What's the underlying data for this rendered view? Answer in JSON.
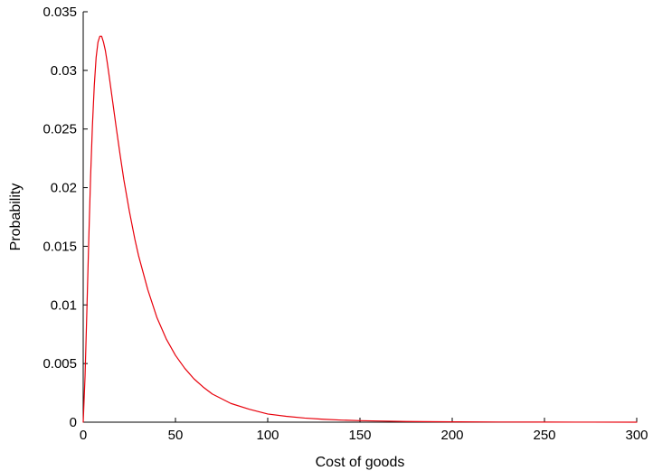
{
  "chart_data": {
    "type": "line",
    "title": "",
    "xlabel": "Cost of goods",
    "ylabel": "Probability",
    "xlim": [
      0,
      300
    ],
    "ylim": [
      0,
      0.035
    ],
    "x_ticks": [
      "0",
      "50",
      "100",
      "150",
      "200",
      "250",
      "300"
    ],
    "y_ticks": [
      "0",
      "0.005",
      "0.01",
      "0.015",
      "0.02",
      "0.025",
      "0.03",
      "0.035"
    ],
    "grid": false,
    "legend": "none",
    "series": [
      {
        "color": "#e8000b",
        "x": [
          0,
          1,
          2,
          3,
          4,
          5,
          6,
          7,
          8,
          9,
          10,
          11,
          12,
          13,
          14,
          16,
          18,
          20,
          22,
          25,
          28,
          30,
          35,
          40,
          45,
          50,
          55,
          60,
          65,
          70,
          80,
          90,
          100,
          110,
          120,
          130,
          140,
          150,
          160,
          175,
          200,
          225,
          250,
          275,
          300
        ],
        "y": [
          0.0,
          0.0039,
          0.0096,
          0.0155,
          0.0209,
          0.0253,
          0.0287,
          0.0311,
          0.0324,
          0.0329,
          0.0329,
          0.0324,
          0.0317,
          0.0307,
          0.0296,
          0.0273,
          0.025,
          0.0228,
          0.0207,
          0.018,
          0.0156,
          0.0142,
          0.0113,
          0.0089,
          0.0071,
          0.0057,
          0.0046,
          0.0037,
          0.003,
          0.0024,
          0.0016,
          0.0011,
          0.0007,
          0.0005,
          0.00035,
          0.00025,
          0.00018,
          0.00013,
          0.0001,
          6e-05,
          3e-05,
          1.5e-05,
          8e-06,
          4e-06,
          2e-06
        ]
      }
    ]
  }
}
